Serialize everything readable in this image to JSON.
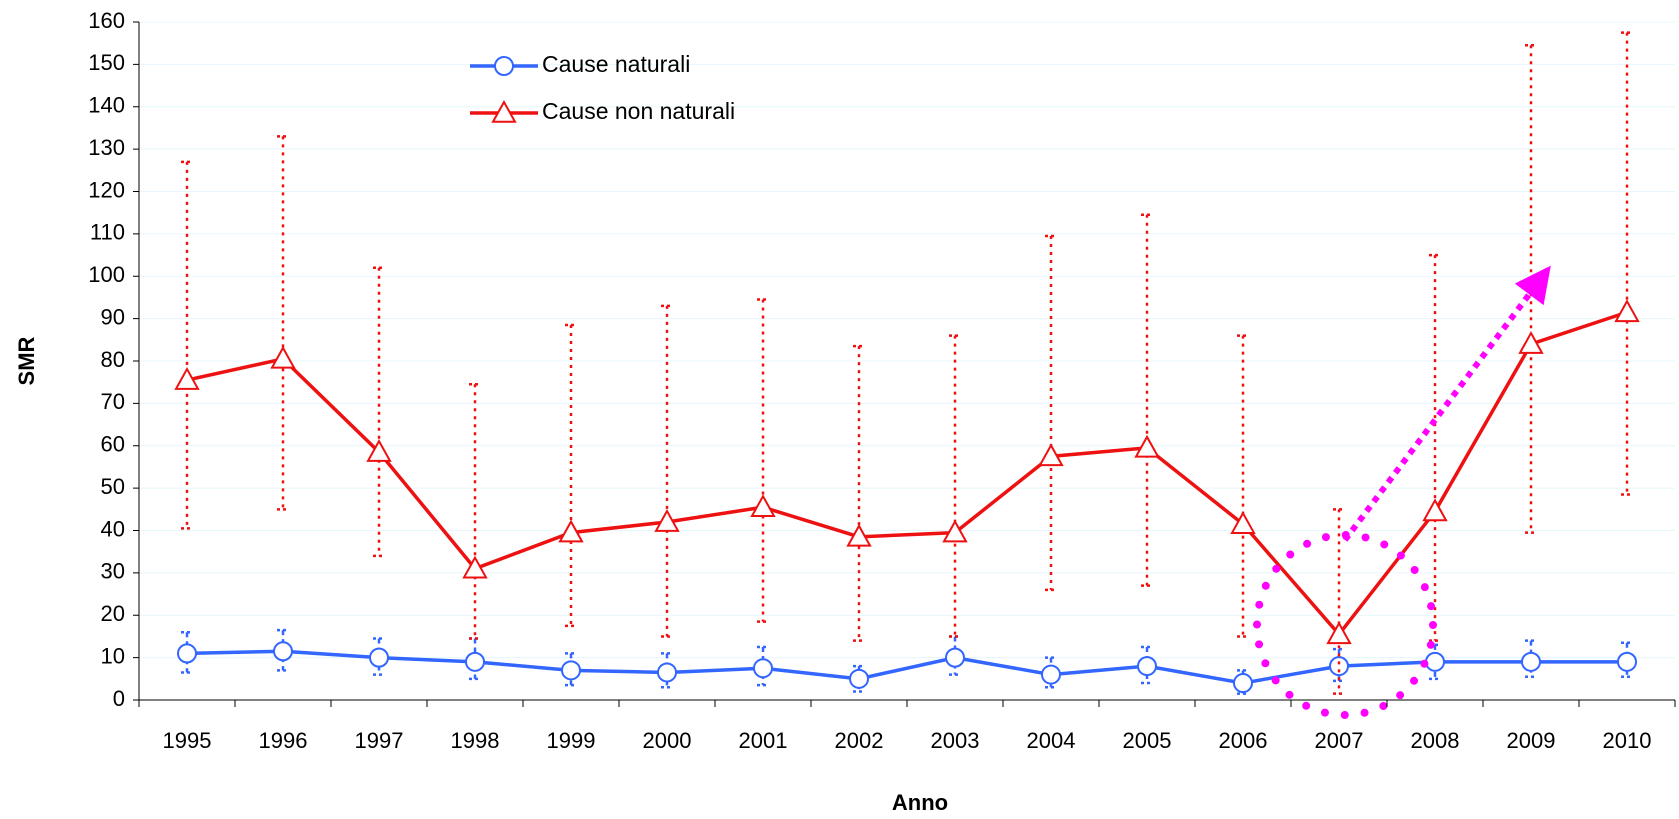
{
  "chart_data": {
    "type": "line",
    "x_label": "Anno",
    "y_label": "SMR",
    "categories": [
      "1995",
      "1996",
      "1997",
      "1998",
      "1999",
      "2000",
      "2001",
      "2002",
      "2003",
      "2004",
      "2005",
      "2006",
      "2007",
      "2008",
      "2009",
      "2010"
    ],
    "series": [
      {
        "name": "Cause naturali",
        "color": "#3366ff",
        "marker": "circle",
        "values": [
          11,
          11.5,
          10,
          9,
          7,
          6.5,
          7.5,
          5,
          10,
          6,
          8,
          4,
          8,
          9,
          9,
          9
        ],
        "error_upper": [
          16,
          16.5,
          14.5,
          14.5,
          11,
          11,
          12.5,
          8,
          15,
          10,
          12.5,
          7,
          12,
          13,
          14,
          13.5
        ],
        "error_lower": [
          6.5,
          7,
          6,
          5,
          3.5,
          3,
          3.5,
          2,
          6,
          3,
          4,
          1.5,
          4.5,
          5,
          5.5,
          5.5
        ]
      },
      {
        "name": "Cause non naturali",
        "color": "#ee1111",
        "marker": "triangle",
        "values": [
          75.5,
          80.5,
          58.5,
          31,
          39.5,
          42,
          45.5,
          38.5,
          39.5,
          57.5,
          59.5,
          41.5,
          15.5,
          44.5,
          84,
          91.5
        ],
        "error_upper": [
          127,
          133,
          102,
          74.5,
          88.5,
          93,
          94.5,
          83.5,
          86,
          109.5,
          114.5,
          86,
          45,
          105,
          154.5,
          157.5
        ],
        "error_lower": [
          40.5,
          45,
          34,
          14.5,
          17.5,
          15,
          18.5,
          14,
          15,
          26,
          27,
          15,
          1.5,
          14,
          39.5,
          48.5
        ]
      }
    ],
    "ylim": [
      0,
      160
    ],
    "yticks": [
      0,
      10,
      20,
      30,
      40,
      50,
      60,
      70,
      80,
      90,
      100,
      110,
      120,
      130,
      140,
      150,
      160
    ],
    "grid": true,
    "legend": "top"
  }
}
